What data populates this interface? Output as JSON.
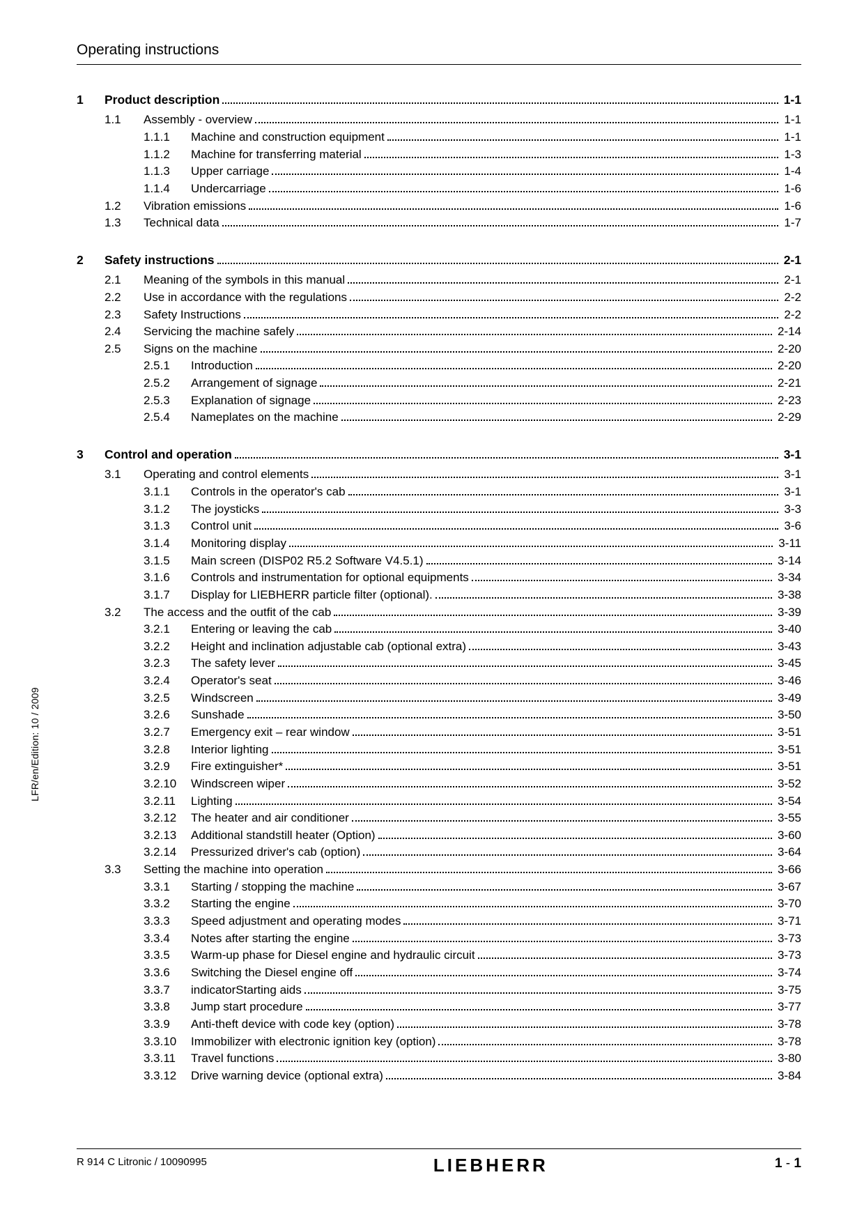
{
  "header": {
    "title": "Operating instructions"
  },
  "sideLabel": "LFR/en/Edition: 10 / 2009",
  "footer": {
    "left": "R 914 C Litronic / 10090995",
    "brand": "LIEBHERR",
    "right_chapter": "1",
    "right_sep": " - ",
    "right_page": "1"
  },
  "layout": {
    "chapterIndent": 0,
    "sectionIndent": 40,
    "subIndent": 96
  },
  "toc": [
    {
      "type": "chapter",
      "num": "1",
      "title": "Product description",
      "page": "1-1"
    },
    {
      "type": "section",
      "num": "1.1",
      "title": "Assembly - overview",
      "page": "1-1"
    },
    {
      "type": "sub",
      "num": "1.1.1",
      "title": "Machine and construction equipment",
      "page": "1-1"
    },
    {
      "type": "sub",
      "num": "1.1.2",
      "title": "Machine for transferring material",
      "page": "1-3"
    },
    {
      "type": "sub",
      "num": "1.1.3",
      "title": "Upper carriage",
      "page": "1-4"
    },
    {
      "type": "sub",
      "num": "1.1.4",
      "title": "Undercarriage",
      "page": "1-6"
    },
    {
      "type": "section",
      "num": "1.2",
      "title": "Vibration emissions",
      "page": "1-6"
    },
    {
      "type": "section",
      "num": "1.3",
      "title": "Technical data",
      "page": "1-7"
    },
    {
      "type": "chapter",
      "num": "2",
      "title": "Safety instructions",
      "page": "2-1"
    },
    {
      "type": "section",
      "num": "2.1",
      "title": "Meaning of the symbols in this manual",
      "page": "2-1"
    },
    {
      "type": "section",
      "num": "2.2",
      "title": "Use in accordance with the regulations",
      "page": "2-2"
    },
    {
      "type": "section",
      "num": "2.3",
      "title": "Safety Instructions",
      "page": "2-2"
    },
    {
      "type": "section",
      "num": "2.4",
      "title": "Servicing the machine safely",
      "page": "2-14"
    },
    {
      "type": "section",
      "num": "2.5",
      "title": "Signs on the machine",
      "page": "2-20"
    },
    {
      "type": "sub",
      "num": "2.5.1",
      "title": "Introduction",
      "page": "2-20"
    },
    {
      "type": "sub",
      "num": "2.5.2",
      "title": "Arrangement of signage",
      "page": "2-21"
    },
    {
      "type": "sub",
      "num": "2.5.3",
      "title": "Explanation of signage",
      "page": "2-23"
    },
    {
      "type": "sub",
      "num": "2.5.4",
      "title": "Nameplates on the machine",
      "page": "2-29"
    },
    {
      "type": "chapter",
      "num": "3",
      "title": "Control and operation",
      "page": "3-1"
    },
    {
      "type": "section",
      "num": "3.1",
      "title": "Operating and control elements",
      "page": "3-1"
    },
    {
      "type": "sub",
      "num": "3.1.1",
      "title": "Controls in the operator's cab",
      "page": "3-1"
    },
    {
      "type": "sub",
      "num": "3.1.2",
      "title": "The joysticks",
      "page": "3-3"
    },
    {
      "type": "sub",
      "num": "3.1.3",
      "title": "Control unit",
      "page": "3-6"
    },
    {
      "type": "sub",
      "num": "3.1.4",
      "title": "Monitoring display",
      "page": "3-11"
    },
    {
      "type": "sub",
      "num": "3.1.5",
      "title": "Main screen (DISP02 R5.2 Software V4.5.1)",
      "page": "3-14"
    },
    {
      "type": "sub",
      "num": "3.1.6",
      "title": "Controls and instrumentation for optional equipments",
      "page": "3-34"
    },
    {
      "type": "sub",
      "num": "3.1.7",
      "title": "Display for LIEBHERR particle filter (optional).",
      "page": "3-38"
    },
    {
      "type": "section",
      "num": "3.2",
      "title": "The access and the outfit of the cab",
      "page": "3-39"
    },
    {
      "type": "sub",
      "num": "3.2.1",
      "title": "Entering or leaving the cab",
      "page": "3-40"
    },
    {
      "type": "sub",
      "num": "3.2.2",
      "title": "Height and inclination adjustable cab (optional extra)",
      "page": "3-43"
    },
    {
      "type": "sub",
      "num": "3.2.3",
      "title": "The safety lever",
      "page": "3-45"
    },
    {
      "type": "sub",
      "num": "3.2.4",
      "title": "Operator's seat",
      "page": "3-46"
    },
    {
      "type": "sub",
      "num": "3.2.5",
      "title": "Windscreen",
      "page": "3-49"
    },
    {
      "type": "sub",
      "num": "3.2.6",
      "title": "Sunshade",
      "page": "3-50"
    },
    {
      "type": "sub",
      "num": "3.2.7",
      "title": "Emergency exit – rear window",
      "page": "3-51"
    },
    {
      "type": "sub",
      "num": "3.2.8",
      "title": "Interior lighting",
      "page": "3-51"
    },
    {
      "type": "sub",
      "num": "3.2.9",
      "title": "Fire extinguisher*",
      "page": "3-51"
    },
    {
      "type": "sub",
      "num": "3.2.10",
      "title": "Windscreen wiper",
      "page": "3-52"
    },
    {
      "type": "sub",
      "num": "3.2.11",
      "title": "Lighting",
      "page": "3-54"
    },
    {
      "type": "sub",
      "num": "3.2.12",
      "title": "The heater and air conditioner",
      "page": "3-55"
    },
    {
      "type": "sub",
      "num": "3.2.13",
      "title": "Additional standstill heater (Option)",
      "page": "3-60"
    },
    {
      "type": "sub",
      "num": "3.2.14",
      "title": "Pressurized driver's cab (option)",
      "page": "3-64"
    },
    {
      "type": "section",
      "num": "3.3",
      "title": "Setting the machine into operation",
      "page": "3-66"
    },
    {
      "type": "sub",
      "num": "3.3.1",
      "title": "Starting / stopping the machine",
      "page": "3-67"
    },
    {
      "type": "sub",
      "num": "3.3.2",
      "title": "Starting the engine",
      "page": "3-70"
    },
    {
      "type": "sub",
      "num": "3.3.3",
      "title": "Speed adjustment and operating modes",
      "page": "3-71"
    },
    {
      "type": "sub",
      "num": "3.3.4",
      "title": "Notes after starting the engine",
      "page": "3-73"
    },
    {
      "type": "sub",
      "num": "3.3.5",
      "title": "Warm-up phase for Diesel engine and hydraulic circuit",
      "page": "3-73"
    },
    {
      "type": "sub",
      "num": "3.3.6",
      "title": "Switching the Diesel engine off",
      "page": "3-74"
    },
    {
      "type": "sub",
      "num": "3.3.7",
      "title": "indicatorStarting aids",
      "page": "3-75"
    },
    {
      "type": "sub",
      "num": "3.3.8",
      "title": "Jump start procedure",
      "page": "3-77"
    },
    {
      "type": "sub",
      "num": "3.3.9",
      "title": "Anti-theft device with code key (option)",
      "page": "3-78"
    },
    {
      "type": "sub",
      "num": "3.3.10",
      "title": "Immobilizer with electronic ignition key (option)",
      "page": "3-78"
    },
    {
      "type": "sub",
      "num": "3.3.11",
      "title": "Travel functions",
      "page": "3-80"
    },
    {
      "type": "sub",
      "num": "3.3.12",
      "title": "Drive warning device (optional extra)",
      "page": "3-84"
    }
  ]
}
